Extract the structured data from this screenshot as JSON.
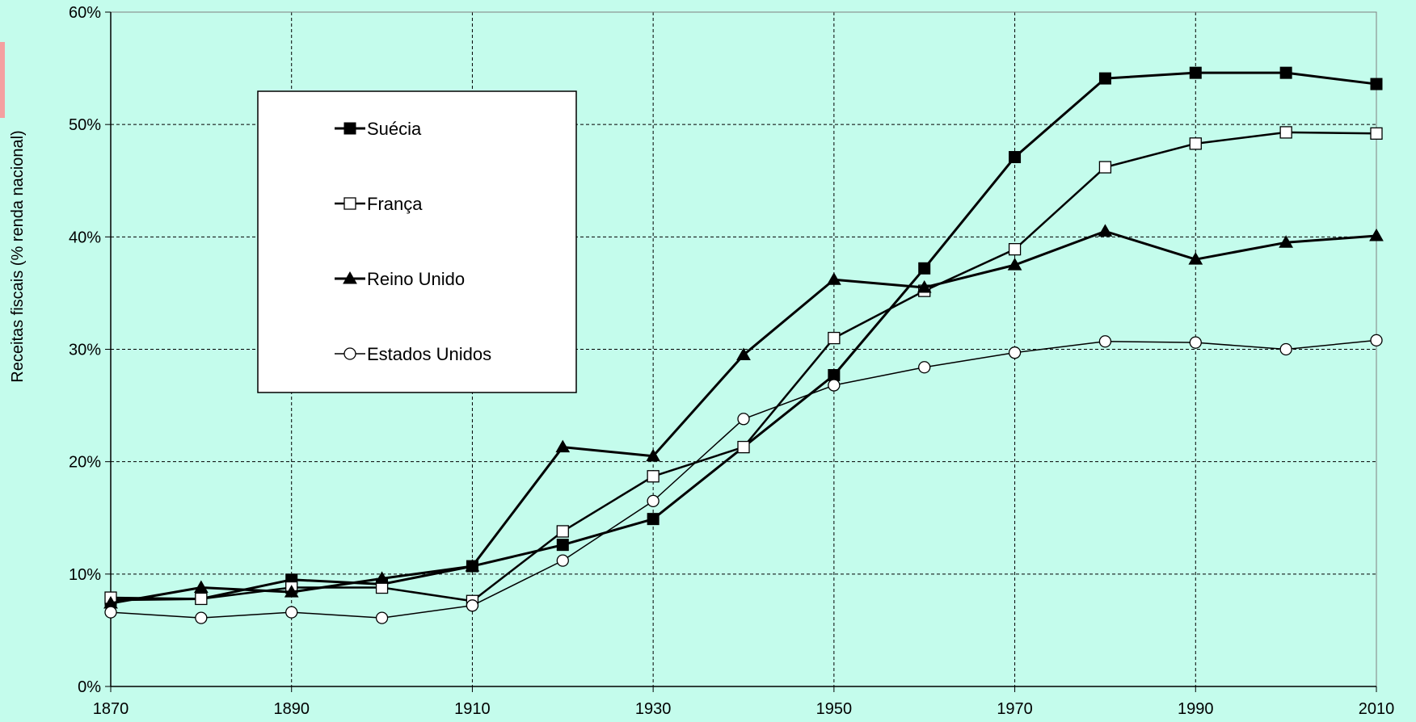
{
  "chart_data": {
    "type": "line",
    "title": "",
    "xlabel": "",
    "ylabel": "Receitas fiscais (% renda nacional)",
    "x": [
      1870,
      1880,
      1890,
      1900,
      1910,
      1920,
      1930,
      1940,
      1950,
      1960,
      1970,
      1980,
      1990,
      2000,
      2010
    ],
    "xlim": [
      1870,
      2010
    ],
    "ylim": [
      0,
      0.6
    ],
    "x_ticks": [
      "1870",
      "1890",
      "1910",
      "1930",
      "1950",
      "1970",
      "1990",
      "2010"
    ],
    "y_ticks": [
      "0%",
      "10%",
      "20%",
      "30%",
      "40%",
      "50%",
      "60%"
    ],
    "grid": true,
    "legend_position": "top-left",
    "background_color": "#c4fcec",
    "series": [
      {
        "name": "Suécia",
        "marker": "filled-square",
        "line_width": 3,
        "values": [
          0.077,
          0.078,
          0.095,
          0.091,
          0.107,
          0.126,
          0.149,
          0.213,
          0.277,
          0.372,
          0.471,
          0.541,
          0.546,
          0.546,
          0.536
        ]
      },
      {
        "name": "França",
        "marker": "open-square",
        "line_width": 2.5,
        "values": [
          0.079,
          0.078,
          0.088,
          0.088,
          0.076,
          0.138,
          0.187,
          0.213,
          0.31,
          0.352,
          0.389,
          0.462,
          0.483,
          0.493,
          0.492
        ]
      },
      {
        "name": "Reino Unido",
        "marker": "filled-triangle",
        "line_width": 3,
        "values": [
          0.074,
          0.088,
          0.084,
          0.096,
          0.107,
          0.213,
          0.205,
          0.295,
          0.362,
          0.355,
          0.375,
          0.405,
          0.38,
          0.395,
          0.401
        ]
      },
      {
        "name": "Estados Unidos",
        "marker": "open-circle",
        "line_width": 1.5,
        "values": [
          0.066,
          0.061,
          0.066,
          0.061,
          0.072,
          0.112,
          0.165,
          0.238,
          0.268,
          0.284,
          0.297,
          0.307,
          0.306,
          0.3,
          0.308
        ]
      }
    ]
  }
}
